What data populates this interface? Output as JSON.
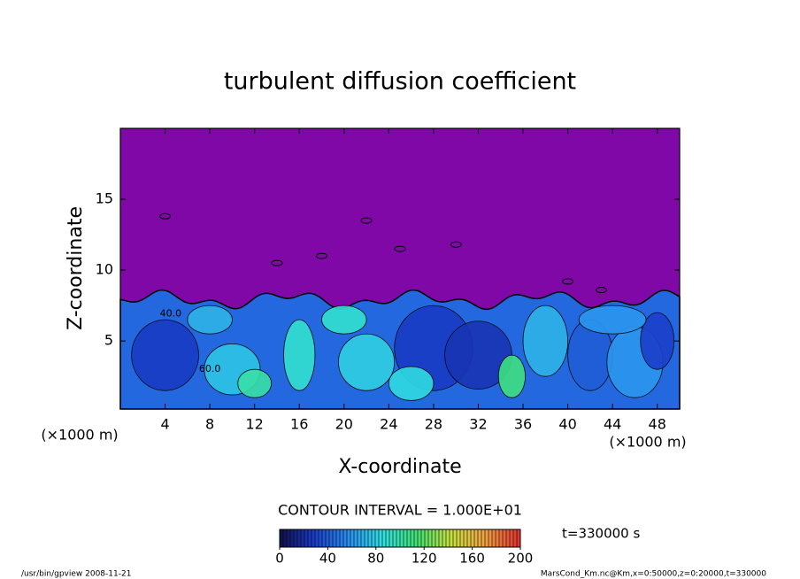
{
  "chart_data": {
    "type": "contour",
    "title": "turbulent diffusion coefficient",
    "xlabel": "X-coordinate",
    "ylabel": "Z-coordinate",
    "x_unit": "(×1000 m)",
    "y_unit": "(×1000 m)",
    "xlim": [
      0,
      50
    ],
    "xticks": [
      4,
      8,
      12,
      16,
      20,
      24,
      28,
      32,
      36,
      40,
      44,
      48
    ],
    "ylim": [
      0.2,
      20
    ],
    "yticks": [
      5,
      10,
      15
    ],
    "background_color": "#7f08a6",
    "contour_labels": [
      "40.0",
      "60.0"
    ],
    "colorbar": {
      "lim": [
        0,
        200
      ],
      "ticks": [
        0,
        40,
        80,
        120,
        160,
        200
      ],
      "colors": [
        "#10104a",
        "#1a3cc8",
        "#2a8ef0",
        "#30e0e0",
        "#40e070",
        "#c8e040",
        "#f0a040",
        "#e03030"
      ]
    },
    "contour_interval": "CONTOUR INTERVAL = 1.000E+01",
    "time_label": "t=330000 s",
    "footer_left": "/usr/bin/gpview   2008-11-21",
    "footer_right": "MarsCond_Km.nc@Km,x=0:50000,z=0:20000,t=330000"
  }
}
